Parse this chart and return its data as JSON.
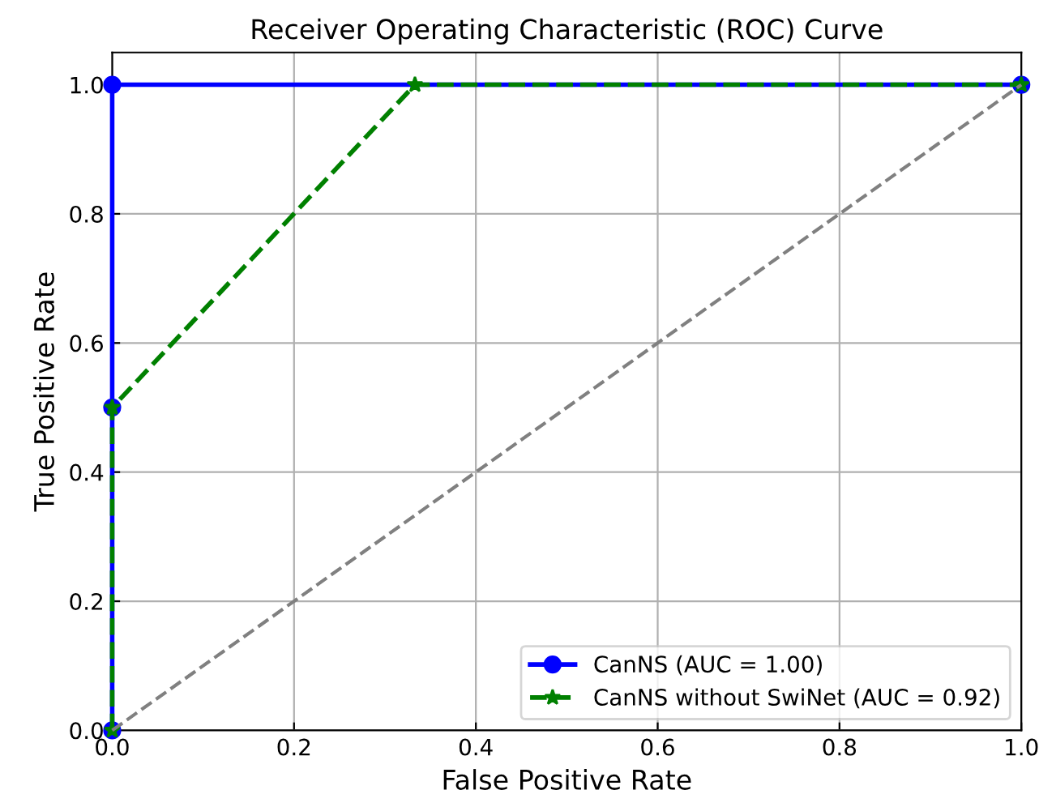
{
  "chart_data": {
    "type": "line",
    "title": "Receiver Operating Characteristic (ROC) Curve",
    "xlabel": "False Positive Rate",
    "ylabel": "True Positive Rate",
    "series": [
      {
        "name": "CanNS (AUC = 1.00)",
        "color": "#0000ff",
        "x": [
          0,
          0,
          0,
          1
        ],
        "values": [
          0,
          0.5,
          1,
          1
        ],
        "marker": "circle",
        "line_style": "solid"
      },
      {
        "name": "CanNS without SwiNet (AUC = 0.92)",
        "color": "#008000",
        "x": [
          0,
          0,
          0.333,
          1
        ],
        "values": [
          0,
          0.5,
          1,
          1
        ],
        "marker": "star",
        "line_style": "dashed"
      },
      {
        "color": "#808080",
        "x": [
          0,
          1
        ],
        "values": [
          0,
          1
        ],
        "marker": "none",
        "line_style": "dashed"
      }
    ],
    "xlim": [
      0,
      1
    ],
    "ylim": [
      0,
      1.05
    ],
    "xticks": [
      {
        "value": 0,
        "label": "0.0"
      },
      0.2,
      0.4,
      0.6,
      0.8,
      {
        "value": 1,
        "label": "1.0"
      }
    ],
    "yticks": [
      {
        "value": 0,
        "label": "0.0"
      },
      0.2,
      0.4,
      0.6,
      0.8,
      {
        "value": 1,
        "label": "1.0"
      }
    ],
    "grid": true,
    "legend": "bottom right"
  }
}
